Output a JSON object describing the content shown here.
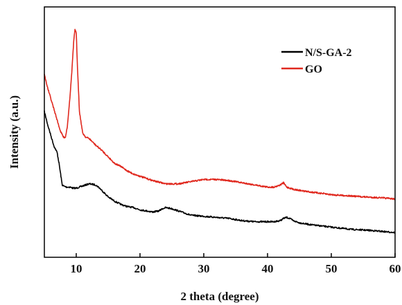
{
  "chart_data": {
    "type": "line",
    "title": "",
    "xlabel": "2 theta (degree)",
    "ylabel": "Intensity (a.u.)",
    "xlim": [
      5,
      60
    ],
    "ylim": [
      0,
      100
    ],
    "yticks_shown": false,
    "grid": false,
    "legend_position": "top-right",
    "x_ticks": [
      "10",
      "20",
      "30",
      "40",
      "50",
      "60"
    ],
    "series": [
      {
        "name": "N/S-GA-2",
        "color": "#000000",
        "x": [
          5,
          5.5,
          6,
          6.5,
          7,
          7.3,
          7.6,
          7.8,
          8,
          8.5,
          9,
          9.5,
          10,
          10.5,
          11,
          11.5,
          12,
          12.5,
          13,
          13.5,
          14,
          14.5,
          15,
          16,
          17,
          18,
          19,
          20,
          21,
          22,
          23,
          23.5,
          24,
          24.5,
          25,
          26,
          27,
          28,
          30,
          32,
          34,
          36,
          38,
          40,
          41,
          42,
          42.5,
          43,
          43.5,
          44,
          45,
          47,
          50,
          53,
          56,
          58,
          60
        ],
        "values": [
          62,
          56,
          51,
          46,
          43,
          38,
          32,
          28,
          27.5,
          27,
          27,
          26.5,
          26.5,
          27,
          27.5,
          28,
          28.5,
          28.3,
          28,
          27,
          25.5,
          24,
          22.5,
          20.5,
          19,
          18,
          17.5,
          16.5,
          16,
          15.5,
          16,
          17,
          17.5,
          17.3,
          17,
          16,
          15,
          14,
          13.5,
          13,
          12.5,
          11.5,
          11,
          11,
          11,
          11.5,
          12.5,
          13,
          12.5,
          11.5,
          10.5,
          9.5,
          8.5,
          7.5,
          7,
          6.5,
          6
        ]
      },
      {
        "name": "GO",
        "color": "#e0281e",
        "x": [
          5,
          5.5,
          6,
          6.5,
          7,
          7.5,
          8,
          8.3,
          8.6,
          9,
          9.3,
          9.6,
          9.8,
          10,
          10.2,
          10.5,
          11,
          11.5,
          12,
          12.5,
          13,
          14,
          15,
          16,
          17,
          18,
          19,
          20,
          22,
          24,
          26,
          28,
          30,
          32,
          34,
          36,
          38,
          40,
          41,
          42,
          42.5,
          43,
          44,
          46,
          50,
          55,
          58,
          60
        ],
        "values": [
          79,
          73,
          68,
          63,
          58,
          53,
          50,
          50,
          55,
          68,
          80,
          94,
          100,
          98,
          82,
          62,
          52,
          50,
          49.5,
          48,
          46.5,
          44,
          41,
          38,
          36.5,
          34.5,
          33,
          32,
          30,
          28.5,
          28.5,
          29.5,
          30.5,
          30.5,
          30,
          29,
          28,
          27,
          27,
          28,
          29,
          27,
          26,
          25,
          23.5,
          22.5,
          22,
          21.5
        ]
      }
    ]
  }
}
